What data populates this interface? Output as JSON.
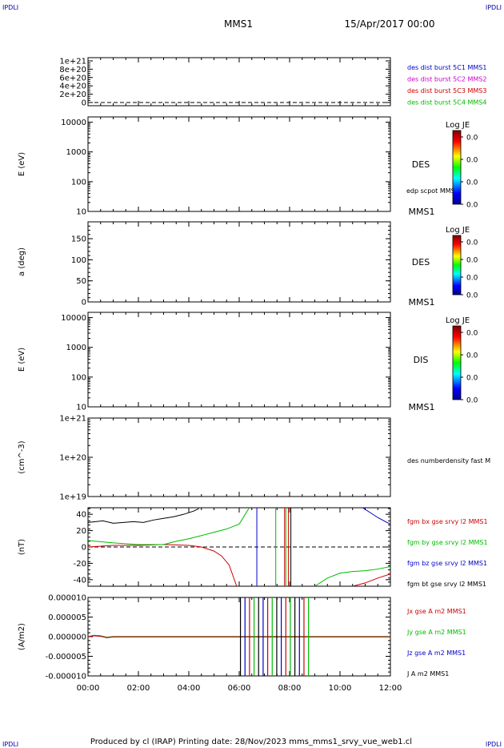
{
  "header": {
    "corner_tl": "IPDLI",
    "corner_tr": "IPDLI",
    "corner_bl": "IPDLI",
    "corner_br": "IPDLI",
    "spacecraft": "MMS1",
    "date": "15/Apr/2017 00:00"
  },
  "footer": {
    "text": "Produced by cl (IRAP)   Printing date: 28/Nov/2023   mms_mms1_srvy_vue_web1.cl"
  },
  "time_axis": {
    "ticks": [
      "00:00",
      "02:00",
      "04:00",
      "06:00",
      "08:00",
      "10:00",
      "12:00"
    ]
  },
  "panels": {
    "p1": {
      "yticks": [
        "1e+21",
        "8e+20",
        "6e+20",
        "4e+20",
        "2e+20",
        "0"
      ],
      "legend": [
        {
          "label": "des dist burst 5C1 MMS1",
          "color": "#0000cc"
        },
        {
          "label": "des dist burst 5C2 MMS2",
          "color": "#cc00cc"
        },
        {
          "label": "des dist burst 5C3 MMS3",
          "color": "#cc0000"
        },
        {
          "label": "des dist burst 5C4 MMS4",
          "color": "#00bb00"
        }
      ]
    },
    "p2": {
      "ylabel": "E (eV)",
      "yticks": [
        "10000",
        "1000",
        "100",
        "10"
      ],
      "species": "DES",
      "overlay": "edp scpot MMS1",
      "sc": "MMS1",
      "cbar_title": "Log JE",
      "cbar_ticks": [
        "0.0",
        "0.0",
        "0.0",
        "0.0"
      ]
    },
    "p3": {
      "ylabel": "a (deg)",
      "yticks": [
        "150",
        "100",
        "50",
        "0"
      ],
      "species": "DES",
      "sc": "MMS1",
      "cbar_title": "Log JE",
      "cbar_ticks": [
        "0.0",
        "0.0",
        "0.0",
        "0.0"
      ]
    },
    "p4": {
      "ylabel": "E (eV)",
      "yticks": [
        "10000",
        "1000",
        "100",
        "10"
      ],
      "species": "DIS",
      "sc": "MMS1",
      "cbar_title": "Log JE",
      "cbar_ticks": [
        "0.0",
        "0.0",
        "0.0",
        "0.0"
      ]
    },
    "p5": {
      "ylabel": "(cm^-3)",
      "yticks": [
        "1e+21",
        "1e+20",
        "1e+19"
      ],
      "legend": [
        {
          "label": "des numberdensity fast M",
          "color": "#000000"
        }
      ]
    },
    "p6": {
      "ylabel": "(nT)",
      "yticks": [
        "40",
        "20",
        "0",
        "-20",
        "-40"
      ],
      "legend": [
        {
          "label": "fgm bx gse srvy l2 MMS1",
          "color": "#cc0000"
        },
        {
          "label": "fgm by gse srvy l2 MMS1",
          "color": "#00bb00"
        },
        {
          "label": "fgm bz gse srvy l2 MMS1",
          "color": "#0000cc"
        },
        {
          "label": "fgm bt gse srvy l2 MMS1",
          "color": "#000000"
        }
      ]
    },
    "p7": {
      "ylabel": "(A/m2)",
      "yticks": [
        "0.000010",
        "0.000005",
        "0.000000",
        "-0.000005",
        "-0.000010"
      ],
      "legend": [
        {
          "label": "Jx gse A m2 MMS1",
          "color": "#cc0000"
        },
        {
          "label": "Jy gse A m2 MMS1",
          "color": "#00bb00"
        },
        {
          "label": "Jz gse A m2 MMS1",
          "color": "#0000cc"
        },
        {
          "label": "J A m2 MMS1",
          "color": "#000000"
        }
      ]
    }
  },
  "chart_data": [
    {
      "type": "line",
      "xlim": [
        "00:00",
        "12:00"
      ],
      "ylim": [
        0,
        1e+21
      ],
      "series": []
    },
    {
      "type": "heatmap",
      "xlim": [
        "00:00",
        "12:00"
      ],
      "ylim": [
        10,
        20000
      ],
      "yscale": "log",
      "series": []
    },
    {
      "type": "heatmap",
      "xlim": [
        "00:00",
        "12:00"
      ],
      "ylim": [
        0,
        180
      ],
      "series": []
    },
    {
      "type": "heatmap",
      "xlim": [
        "00:00",
        "12:00"
      ],
      "ylim": [
        10,
        20000
      ],
      "yscale": "log",
      "series": []
    },
    {
      "type": "line",
      "xlim": [
        "00:00",
        "12:00"
      ],
      "ylim": [
        1e+19,
        1e+21
      ],
      "yscale": "log",
      "series": []
    },
    {
      "type": "line",
      "xlim": [
        "00:00",
        "12:00"
      ],
      "ylim": [
        -48,
        48
      ],
      "series": [
        {
          "name": "fgm bt gse srvy l2 MMS1",
          "color": "#000000",
          "x": [
            0,
            0.3,
            0.6,
            1,
            1.4,
            1.8,
            2.2,
            2.6,
            3,
            3.4,
            3.8,
            4.2,
            4.4
          ],
          "y": [
            30,
            31,
            32,
            29,
            30,
            31,
            30,
            33,
            35,
            37,
            40,
            44,
            47
          ]
        },
        {
          "name": "fgm bx gse srvy l2 MMS1",
          "color": "#cc0000",
          "x": [
            0,
            1,
            2,
            3,
            4,
            4.5,
            5,
            5.3,
            5.6,
            5.9
          ],
          "y": [
            0,
            2,
            2,
            3,
            2,
            0,
            -5,
            -11,
            -22,
            -48
          ]
        },
        {
          "name": "fgm by gse srvy l2 MMS1",
          "color": "#00bb00",
          "x": [
            0,
            1,
            2,
            3,
            3.5,
            4,
            4.5,
            5,
            5.5,
            6,
            6.4
          ],
          "y": [
            8,
            5,
            3,
            3,
            7,
            10,
            14,
            18,
            22,
            28,
            48
          ]
        },
        {
          "name": "fgm bx gse srvy l2 MMS1",
          "color": "#cc0000",
          "x": [
            10.5,
            11,
            11.5,
            12
          ],
          "y": [
            -48,
            -44,
            -38,
            -33
          ]
        },
        {
          "name": "fgm by gse srvy l2 MMS1",
          "color": "#00bb00",
          "x": [
            9,
            9.5,
            10,
            10.5,
            11,
            11.5,
            12
          ],
          "y": [
            -48,
            -38,
            -32,
            -30,
            -29,
            -27,
            -24
          ]
        },
        {
          "name": "fgm bz gse srvy l2 MMS1",
          "color": "#0000cc",
          "x": [
            10.9,
            11.2,
            11.5,
            11.8,
            12
          ],
          "y": [
            48,
            42,
            36,
            31,
            28
          ]
        }
      ]
    },
    {
      "type": "line",
      "xlim": [
        "00:00",
        "12:00"
      ],
      "ylim": [
        -1e-05,
        1e-05
      ],
      "series": []
    }
  ]
}
